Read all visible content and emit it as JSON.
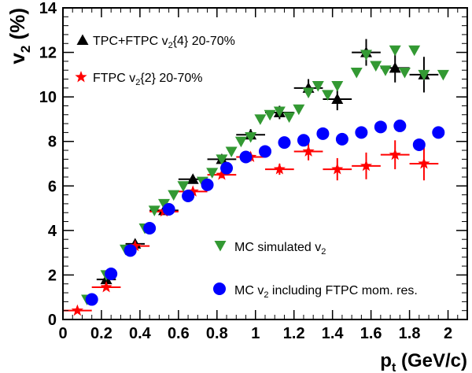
{
  "chart_data": {
    "type": "scatter",
    "xlabel": {
      "main": "p",
      "sub": "t",
      "rest": " (GeV/c)"
    },
    "ylabel": {
      "main": "v",
      "sub": "2",
      "rest": " (%)"
    },
    "xlim": [
      0,
      2.1
    ],
    "ylim": [
      0,
      14
    ],
    "x_ticks": [
      "0",
      "0.2",
      "0.4",
      "0.6",
      "0.8",
      "1",
      "1.2",
      "1.4",
      "1.6",
      "1.8",
      "2"
    ],
    "y_ticks": [
      "0",
      "2",
      "4",
      "6",
      "8",
      "10",
      "12",
      "14"
    ],
    "grid": false,
    "series": [
      {
        "key": "tpc",
        "name": {
          "pre": "TPC+FTPC v",
          "sub": "2",
          "post": "{4} 20-70%"
        },
        "marker": "triangle-up",
        "color": "#000000",
        "points": [
          {
            "x": 0.225,
            "y": 1.8,
            "xerr": 0.05,
            "yerr": 0.25
          },
          {
            "x": 0.375,
            "y": 3.4,
            "xerr": 0.05,
            "yerr": 0.15
          },
          {
            "x": 0.525,
            "y": 4.9,
            "xerr": 0.075,
            "yerr": 0.1
          },
          {
            "x": 0.675,
            "y": 6.3,
            "xerr": 0.075,
            "yerr": 0.15
          },
          {
            "x": 0.825,
            "y": 7.2,
            "xerr": 0.075,
            "yerr": 0.2
          },
          {
            "x": 0.975,
            "y": 8.3,
            "xerr": 0.075,
            "yerr": 0.25
          },
          {
            "x": 1.125,
            "y": 9.3,
            "xerr": 0.075,
            "yerr": 0.3
          },
          {
            "x": 1.275,
            "y": 10.4,
            "xerr": 0.075,
            "yerr": 0.4
          },
          {
            "x": 1.425,
            "y": 9.9,
            "xerr": 0.075,
            "yerr": 0.5
          },
          {
            "x": 1.575,
            "y": 12.0,
            "xerr": 0.075,
            "yerr": 0.6
          },
          {
            "x": 1.725,
            "y": 11.3,
            "xerr": 0.075,
            "yerr": 0.65
          },
          {
            "x": 1.875,
            "y": 11.0,
            "xerr": 0.075,
            "yerr": 0.8
          }
        ]
      },
      {
        "key": "ftpc",
        "name": {
          "pre": "FTPC v",
          "sub": "2",
          "post": "{2} 20-70%"
        },
        "marker": "star",
        "color": "#ff0000",
        "points": [
          {
            "x": 0.075,
            "y": 0.4,
            "xerr": 0.075,
            "yerr": 0.05
          },
          {
            "x": 0.225,
            "y": 1.45,
            "xerr": 0.075,
            "yerr": 0.1
          },
          {
            "x": 0.375,
            "y": 3.3,
            "xerr": 0.075,
            "yerr": 0.1
          },
          {
            "x": 0.525,
            "y": 4.85,
            "xerr": 0.075,
            "yerr": 0.1
          },
          {
            "x": 0.675,
            "y": 5.75,
            "xerr": 0.075,
            "yerr": 0.15
          },
          {
            "x": 0.825,
            "y": 6.5,
            "xerr": 0.075,
            "yerr": 0.15
          },
          {
            "x": 0.975,
            "y": 7.3,
            "xerr": 0.075,
            "yerr": 0.2
          },
          {
            "x": 1.125,
            "y": 6.75,
            "xerr": 0.075,
            "yerr": 0.25
          },
          {
            "x": 1.275,
            "y": 7.55,
            "xerr": 0.075,
            "yerr": 0.4
          },
          {
            "x": 1.425,
            "y": 6.75,
            "xerr": 0.075,
            "yerr": 0.5
          },
          {
            "x": 1.575,
            "y": 6.9,
            "xerr": 0.075,
            "yerr": 0.6
          },
          {
            "x": 1.725,
            "y": 7.4,
            "xerr": 0.075,
            "yerr": 0.65
          },
          {
            "x": 1.875,
            "y": 7.0,
            "xerr": 0.075,
            "yerr": 0.75
          }
        ]
      },
      {
        "key": "mcsim",
        "name": {
          "pre": "MC simulated v",
          "sub": "2",
          "post": ""
        },
        "marker": "triangle-down",
        "color": "#339933",
        "points": [
          {
            "x": 0.125,
            "y": 0.9
          },
          {
            "x": 0.225,
            "y": 2.0
          },
          {
            "x": 0.325,
            "y": 3.15
          },
          {
            "x": 0.425,
            "y": 4.1
          },
          {
            "x": 0.475,
            "y": 4.9
          },
          {
            "x": 0.525,
            "y": 5.2
          },
          {
            "x": 0.575,
            "y": 5.6
          },
          {
            "x": 0.625,
            "y": 6.0
          },
          {
            "x": 0.725,
            "y": 6.2
          },
          {
            "x": 0.775,
            "y": 6.6
          },
          {
            "x": 0.825,
            "y": 7.2
          },
          {
            "x": 0.875,
            "y": 7.55
          },
          {
            "x": 0.925,
            "y": 8.0
          },
          {
            "x": 0.975,
            "y": 8.2
          },
          {
            "x": 1.025,
            "y": 9.0
          },
          {
            "x": 1.075,
            "y": 9.2
          },
          {
            "x": 1.125,
            "y": 9.35
          },
          {
            "x": 1.175,
            "y": 9.1
          },
          {
            "x": 1.225,
            "y": 9.45
          },
          {
            "x": 1.275,
            "y": 10.2
          },
          {
            "x": 1.325,
            "y": 10.5
          },
          {
            "x": 1.375,
            "y": 10.1
          },
          {
            "x": 1.425,
            "y": 10.5
          },
          {
            "x": 1.525,
            "y": 11.1
          },
          {
            "x": 1.575,
            "y": 11.9
          },
          {
            "x": 1.625,
            "y": 11.4
          },
          {
            "x": 1.675,
            "y": 11.2
          },
          {
            "x": 1.725,
            "y": 12.1
          },
          {
            "x": 1.775,
            "y": 11.1
          },
          {
            "x": 1.825,
            "y": 12.1
          },
          {
            "x": 1.875,
            "y": 11.0
          },
          {
            "x": 1.975,
            "y": 11.0
          }
        ]
      },
      {
        "key": "mcres",
        "name": {
          "pre": "MC v",
          "sub": "2",
          "post": " including FTPC mom. res."
        },
        "marker": "circle",
        "color": "#0000ff",
        "points": [
          {
            "x": 0.15,
            "y": 0.9
          },
          {
            "x": 0.25,
            "y": 2.05
          },
          {
            "x": 0.35,
            "y": 3.1
          },
          {
            "x": 0.45,
            "y": 4.1
          },
          {
            "x": 0.55,
            "y": 4.95
          },
          {
            "x": 0.65,
            "y": 5.55
          },
          {
            "x": 0.75,
            "y": 6.05
          },
          {
            "x": 0.85,
            "y": 6.8
          },
          {
            "x": 0.95,
            "y": 7.3
          },
          {
            "x": 1.05,
            "y": 7.55
          },
          {
            "x": 1.15,
            "y": 7.95
          },
          {
            "x": 1.25,
            "y": 8.05
          },
          {
            "x": 1.35,
            "y": 8.35
          },
          {
            "x": 1.45,
            "y": 8.1
          },
          {
            "x": 1.55,
            "y": 8.4
          },
          {
            "x": 1.65,
            "y": 8.65
          },
          {
            "x": 1.75,
            "y": 8.7
          },
          {
            "x": 1.85,
            "y": 7.85
          },
          {
            "x": 1.95,
            "y": 8.4
          }
        ]
      }
    ],
    "legend": [
      {
        "series": "tpc",
        "position": "top-left"
      },
      {
        "series": "ftpc",
        "position": "top-left"
      },
      {
        "series": "mcsim",
        "position": "bottom-center"
      },
      {
        "series": "mcres",
        "position": "bottom-center"
      }
    ]
  }
}
